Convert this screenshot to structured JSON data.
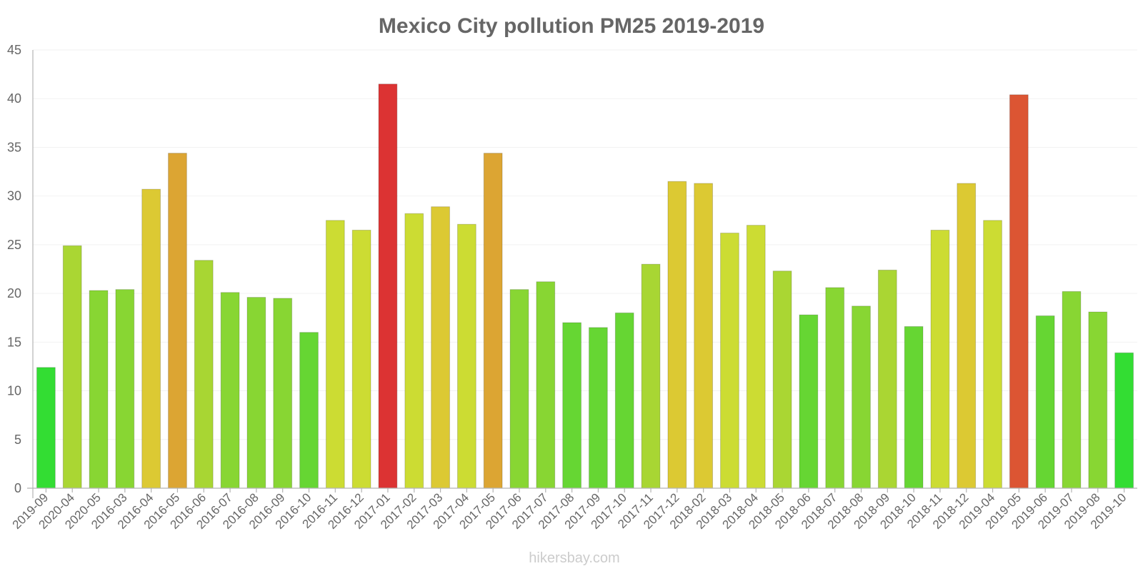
{
  "chart_data": {
    "type": "bar",
    "title": "Mexico City pollution PM25 2019-2019",
    "xlabel": "",
    "ylabel": "",
    "ylim": [
      0,
      45
    ],
    "yticks": [
      0,
      5,
      10,
      15,
      20,
      25,
      30,
      35,
      40,
      45
    ],
    "grid": true,
    "legend": "none",
    "categories": [
      "2019-09",
      "2020-04",
      "2020-05",
      "2016-03",
      "2016-04",
      "2016-05",
      "2016-06",
      "2016-07",
      "2016-08",
      "2016-09",
      "2016-10",
      "2016-11",
      "2016-12",
      "2017-01",
      "2017-02",
      "2017-03",
      "2017-04",
      "2017-05",
      "2017-06",
      "2017-07",
      "2017-08",
      "2017-09",
      "2017-10",
      "2017-11",
      "2017-12",
      "2018-02",
      "2018-03",
      "2018-04",
      "2018-05",
      "2018-06",
      "2018-07",
      "2018-08",
      "2018-09",
      "2018-10",
      "2018-11",
      "2018-12",
      "2019-04",
      "2019-05",
      "2019-06",
      "2019-07",
      "2019-08",
      "2019-10"
    ],
    "values": [
      12.4,
      24.9,
      20.3,
      20.4,
      30.7,
      34.4,
      23.4,
      20.1,
      19.6,
      19.5,
      16.0,
      27.5,
      26.5,
      41.5,
      28.2,
      28.9,
      27.1,
      34.4,
      20.4,
      21.2,
      17.0,
      16.5,
      18.0,
      23.0,
      31.5,
      31.3,
      26.2,
      27.0,
      22.3,
      17.8,
      20.6,
      18.7,
      22.4,
      16.6,
      26.5,
      31.3,
      27.5,
      40.4,
      17.7,
      20.2,
      18.1,
      13.9
    ],
    "colors": [
      "#33dd33",
      "#aad633",
      "#88d633",
      "#88d633",
      "#dcc933",
      "#dca533",
      "#a8d633",
      "#88d633",
      "#88d633",
      "#88d633",
      "#66d633",
      "#ccdc33",
      "#ccdc33",
      "#dc3333",
      "#ccdc33",
      "#dcc933",
      "#ccdc33",
      "#dca533",
      "#88d633",
      "#88d633",
      "#66d633",
      "#66d633",
      "#66d633",
      "#a8d633",
      "#dcc933",
      "#dcc933",
      "#ccdc33",
      "#ccdc33",
      "#aad633",
      "#66d633",
      "#88d633",
      "#88d633",
      "#aad633",
      "#66d633",
      "#ccdc33",
      "#dcc933",
      "#ccdc33",
      "#dc5533",
      "#66d633",
      "#88d633",
      "#88d633",
      "#33dd33"
    ]
  },
  "watermark": "hikersbay.com"
}
